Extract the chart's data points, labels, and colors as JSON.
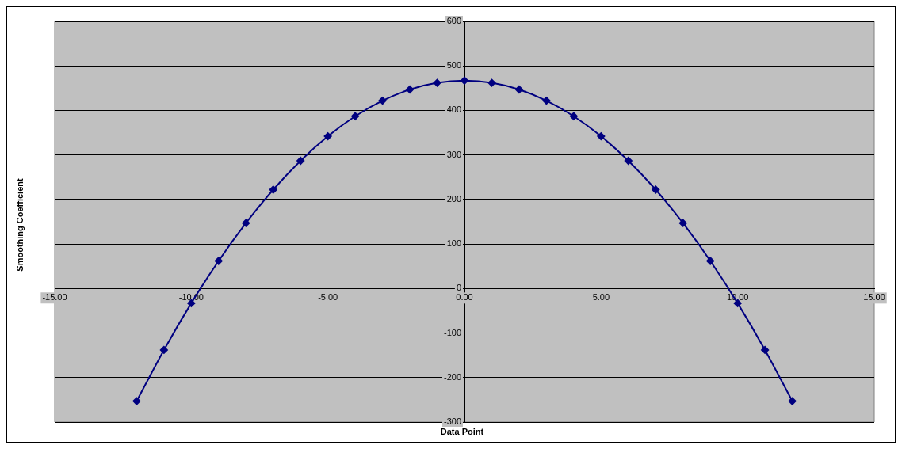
{
  "chart_data": {
    "type": "line",
    "xlabel": "Data Point",
    "ylabel": "Smoothing Coefficient",
    "x": [
      -12,
      -11,
      -10,
      -9,
      -8,
      -7,
      -6,
      -5,
      -4,
      -3,
      -2,
      -1,
      0,
      1,
      2,
      3,
      4,
      5,
      6,
      7,
      8,
      9,
      10,
      11,
      12
    ],
    "series": [
      {
        "color": "#000080",
        "values": [
          -253,
          -138,
          -33,
          62,
          147,
          222,
          287,
          342,
          387,
          422,
          447,
          462,
          467,
          462,
          447,
          422,
          387,
          342,
          287,
          222,
          147,
          62,
          -33,
          -138,
          -253
        ]
      }
    ],
    "xlim": [
      -15,
      15
    ],
    "xticks": [
      {
        "value": -15,
        "label": "-15.00"
      },
      {
        "value": -10,
        "label": "-10.00"
      },
      {
        "value": -5,
        "label": "-5.00"
      },
      {
        "value": 0,
        "label": "0.00"
      },
      {
        "value": 5,
        "label": "5.00"
      },
      {
        "value": 10,
        "label": "10.00"
      },
      {
        "value": 15,
        "label": "15.00"
      }
    ],
    "ylim": [
      -300,
      600
    ],
    "yticks": [
      -300,
      -200,
      -100,
      0,
      100,
      200,
      300,
      400,
      500,
      600
    ],
    "grid": "y",
    "legend": false,
    "marker": "diamond",
    "line_style": "solid"
  }
}
